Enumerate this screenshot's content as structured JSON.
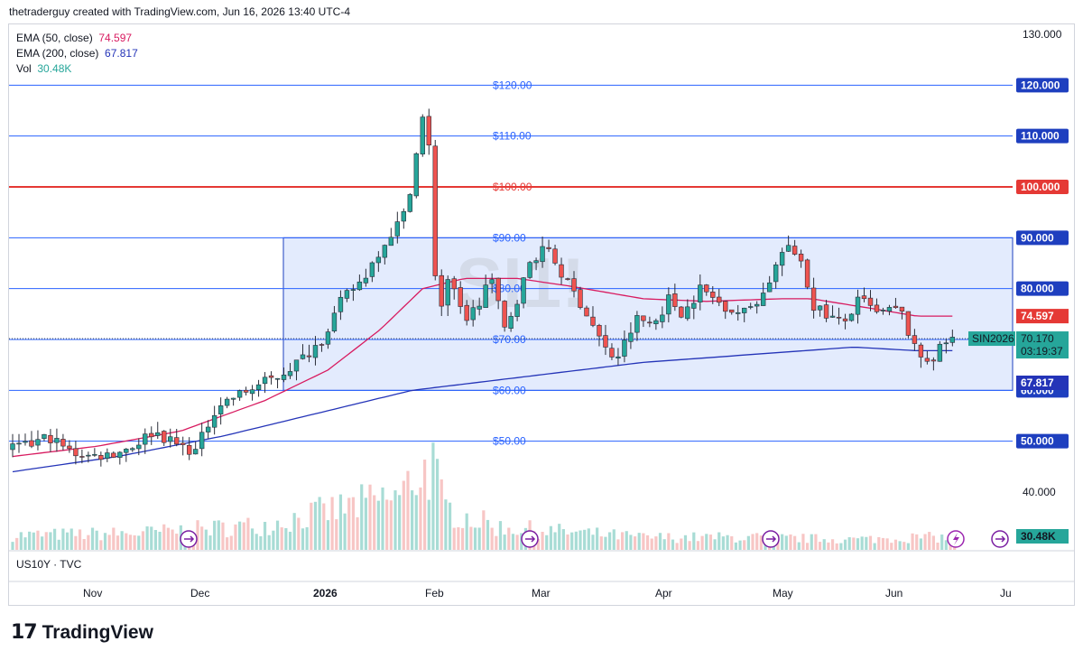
{
  "header": {
    "attribution": "thetraderguy created with TradingView.com, Jun 16, 2026 13:40 UTC-4"
  },
  "legend": {
    "ema50_label": "EMA (50, close)",
    "ema50_value": "74.597",
    "ema200_label": "EMA (200, close)",
    "ema200_value": "67.817",
    "vol_label": "Vol",
    "vol_value": "30.48K"
  },
  "symbol_line": "US10Y · TVC",
  "brand": {
    "mark": "17",
    "name": "TradingView"
  },
  "colors": {
    "up": "#26a69a",
    "down": "#ef5350",
    "ema50": "#d81b60",
    "ema200": "#2434b8",
    "hline": "#2962ff",
    "red_line": "#e53935",
    "rect_fill": "#e3ebfd",
    "vol_up": "#a8dcd5",
    "vol_down": "#f7c6c5"
  },
  "chart_data": {
    "type": "candlestick",
    "y_axis": {
      "range": [
        40,
        130
      ],
      "ticks": [
        "130.000",
        "120.000",
        "110.000",
        "100.000",
        "90.000",
        "80.000",
        "70.000",
        "60.000",
        "50.000",
        "40.000"
      ]
    },
    "x_axis": {
      "labels": [
        "Nov",
        "Dec",
        "2026",
        "Feb",
        "Mar",
        "Apr",
        "May",
        "Jun",
        "Ju"
      ]
    },
    "horizontal_lines": [
      {
        "value": 120,
        "label": "$120.00",
        "axis_label": "120.000",
        "color": "blue"
      },
      {
        "value": 110,
        "label": "$110.00",
        "axis_label": "110.000",
        "color": "blue"
      },
      {
        "value": 100,
        "label": "$100.00",
        "axis_label": "100.000",
        "color": "red"
      },
      {
        "value": 90,
        "label": "$90.00",
        "axis_label": "90.000",
        "color": "blue"
      },
      {
        "value": 80,
        "label": "$80.00",
        "axis_label": "80.000",
        "color": "blue"
      },
      {
        "value": 70,
        "label": "$70.00",
        "axis_label": "70.000",
        "color": "blue"
      },
      {
        "value": 60,
        "label": "$60.00",
        "axis_label": "60.000",
        "color": "blue"
      },
      {
        "value": 50,
        "label": "$50.00",
        "axis_label": "50.000",
        "color": "blue"
      }
    ],
    "range_box": {
      "top": 90,
      "bottom": 60
    },
    "watermark": "SI1!",
    "last_price": {
      "symbol": "SIN2026",
      "price": "70.170",
      "countdown": "03:19:37"
    },
    "ema50_label": "74.597",
    "ema200_label": "67.817",
    "vol_label": "30.48K",
    "anchors": [
      [
        0,
        48.5
      ],
      [
        10,
        49
      ],
      [
        20,
        51
      ],
      [
        30,
        48
      ],
      [
        40,
        47
      ],
      [
        50,
        47.5
      ],
      [
        60,
        49
      ],
      [
        70,
        52
      ],
      [
        80,
        49.5
      ],
      [
        90,
        48
      ],
      [
        100,
        57
      ],
      [
        110,
        59
      ],
      [
        120,
        61
      ],
      [
        130,
        63
      ],
      [
        140,
        66
      ],
      [
        150,
        70
      ],
      [
        160,
        78
      ],
      [
        170,
        82
      ],
      [
        178,
        88
      ],
      [
        190,
        95
      ],
      [
        200,
        118
      ],
      [
        203,
        87
      ],
      [
        206,
        75
      ],
      [
        210,
        82
      ],
      [
        218,
        74
      ],
      [
        225,
        77
      ],
      [
        230,
        83
      ],
      [
        237,
        72
      ],
      [
        243,
        78
      ],
      [
        250,
        86
      ],
      [
        258,
        88
      ],
      [
        265,
        82
      ],
      [
        272,
        78
      ],
      [
        280,
        72
      ],
      [
        285,
        68
      ],
      [
        290,
        66
      ],
      [
        300,
        74
      ],
      [
        308,
        73
      ],
      [
        315,
        78
      ],
      [
        322,
        75
      ],
      [
        330,
        80
      ],
      [
        340,
        77
      ],
      [
        350,
        75
      ],
      [
        360,
        79
      ],
      [
        370,
        88
      ],
      [
        378,
        86
      ],
      [
        383,
        77
      ],
      [
        390,
        75
      ],
      [
        398,
        73
      ],
      [
        406,
        78
      ],
      [
        414,
        75
      ],
      [
        425,
        76
      ],
      [
        433,
        67
      ],
      [
        440,
        66
      ],
      [
        446,
        69
      ],
      [
        448,
        70
      ]
    ],
    "ema50": [
      [
        0,
        47
      ],
      [
        40,
        49
      ],
      [
        80,
        52
      ],
      [
        120,
        58
      ],
      [
        150,
        64
      ],
      [
        175,
        72
      ],
      [
        195,
        80
      ],
      [
        215,
        82
      ],
      [
        240,
        82
      ],
      [
        265,
        80.5
      ],
      [
        300,
        78
      ],
      [
        330,
        77.5
      ],
      [
        365,
        78
      ],
      [
        380,
        78
      ],
      [
        410,
        76
      ],
      [
        430,
        74.6
      ]
    ],
    "ema200": [
      [
        0,
        44
      ],
      [
        50,
        47
      ],
      [
        100,
        51
      ],
      [
        150,
        56
      ],
      [
        190,
        60
      ],
      [
        250,
        63
      ],
      [
        300,
        65.5
      ],
      [
        350,
        67
      ],
      [
        400,
        68.5
      ],
      [
        430,
        67.8
      ]
    ],
    "volume_peaks": [
      [
        0,
        7
      ],
      [
        60,
        8
      ],
      [
        120,
        12
      ],
      [
        180,
        25
      ],
      [
        185,
        25
      ],
      [
        190,
        35
      ],
      [
        200,
        40
      ],
      [
        205,
        20
      ],
      [
        230,
        11
      ],
      [
        300,
        6
      ],
      [
        350,
        6
      ],
      [
        400,
        5
      ],
      [
        430,
        6
      ]
    ]
  }
}
